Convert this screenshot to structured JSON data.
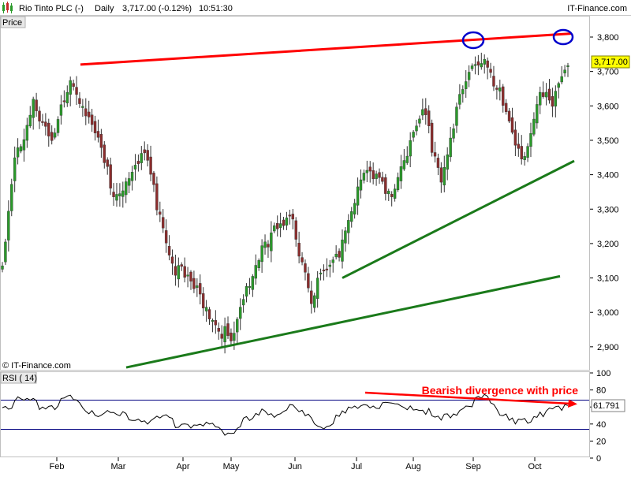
{
  "header": {
    "symbol": "Rio Tinto PLC (-)",
    "period": "Daily",
    "quote": "3,717.00 (-0.12%)",
    "time": "10:51:30",
    "brand": "IT-Finance.com"
  },
  "price_panel": {
    "label": "Price",
    "copyright": "© IT-Finance.com",
    "last_price_tag": "3,717.00",
    "y_ticks": [
      "3,800",
      "3,700",
      "3,600",
      "3,500",
      "3,400",
      "3,300",
      "3,200",
      "3,100",
      "3,000",
      "2,900"
    ]
  },
  "rsi_panel": {
    "label": "RSI ( 14)",
    "annotation": "Bearish divergence with price",
    "last_value_tag": "61.791",
    "y_ticks": [
      "100",
      "80",
      "60",
      "40",
      "20",
      "0"
    ]
  },
  "x_ticks": [
    "Feb",
    "Mar",
    "Apr",
    "May",
    "Jun",
    "Jul",
    "Aug",
    "Sep",
    "Oct"
  ],
  "colors": {
    "bull_candle": "#2a9a2a",
    "bear_candle": "#8b2d2d",
    "resistance": "#ff0000",
    "support": "#1a7a1a",
    "rsi_line": "#000000",
    "rsi_bands": "#000080",
    "marker": "#0000cc",
    "tag_fill": "#ffff00"
  },
  "chart_data": [
    {
      "type": "candlestick",
      "title": "Rio Tinto PLC (-) Daily",
      "ylabel": "Price",
      "ylim": [
        2860,
        3840
      ],
      "x_labels": [
        "Feb",
        "Mar",
        "Apr",
        "May",
        "Jun",
        "Jul",
        "Aug",
        "Sep",
        "Oct"
      ],
      "close_keypoints": [
        {
          "i": 0,
          "close": 3120
        },
        {
          "i": 4,
          "close": 3430
        },
        {
          "i": 10,
          "close": 3620
        },
        {
          "i": 16,
          "close": 3480
        },
        {
          "i": 22,
          "close": 3700
        },
        {
          "i": 28,
          "close": 3560
        },
        {
          "i": 36,
          "close": 3350
        },
        {
          "i": 46,
          "close": 3450
        },
        {
          "i": 56,
          "close": 3130
        },
        {
          "i": 66,
          "close": 3020
        },
        {
          "i": 74,
          "close": 2910
        },
        {
          "i": 84,
          "close": 3200
        },
        {
          "i": 94,
          "close": 3260
        },
        {
          "i": 100,
          "close": 3050
        },
        {
          "i": 108,
          "close": 3150
        },
        {
          "i": 116,
          "close": 3400
        },
        {
          "i": 126,
          "close": 3360
        },
        {
          "i": 136,
          "close": 3580
        },
        {
          "i": 142,
          "close": 3400
        },
        {
          "i": 148,
          "close": 3620
        },
        {
          "i": 156,
          "close": 3760
        },
        {
          "i": 162,
          "close": 3600
        },
        {
          "i": 168,
          "close": 3420
        },
        {
          "i": 174,
          "close": 3650
        },
        {
          "i": 178,
          "close": 3590
        },
        {
          "i": 183,
          "close": 3717
        }
      ],
      "trendlines": [
        {
          "name": "resistance",
          "points": [
            [
              "Jan 31",
              3720
            ],
            [
              "Oct 17",
              3810
            ]
          ]
        },
        {
          "name": "support-upper",
          "points": [
            [
              "Jun 23",
              3100
            ],
            [
              "Oct 19",
              3440
            ]
          ]
        },
        {
          "name": "support-lower",
          "points": [
            [
              "Jan 31",
              2840
            ],
            [
              "Oct 15",
              3105
            ]
          ]
        }
      ],
      "last_price": 3717.0,
      "change_pct": -0.12,
      "grid": false
    },
    {
      "type": "line",
      "title": "RSI ( 14)",
      "ylim": [
        0,
        100
      ],
      "reference_lines": [
        70,
        30
      ],
      "keypoints": [
        {
          "i": 0,
          "value": 60
        },
        {
          "i": 8,
          "value": 68
        },
        {
          "i": 14,
          "value": 60
        },
        {
          "i": 22,
          "value": 67
        },
        {
          "i": 30,
          "value": 55
        },
        {
          "i": 40,
          "value": 48
        },
        {
          "i": 52,
          "value": 45
        },
        {
          "i": 64,
          "value": 38
        },
        {
          "i": 74,
          "value": 32
        },
        {
          "i": 84,
          "value": 52
        },
        {
          "i": 94,
          "value": 58
        },
        {
          "i": 102,
          "value": 38
        },
        {
          "i": 110,
          "value": 50
        },
        {
          "i": 118,
          "value": 66
        },
        {
          "i": 126,
          "value": 60
        },
        {
          "i": 134,
          "value": 62
        },
        {
          "i": 142,
          "value": 42
        },
        {
          "i": 150,
          "value": 65
        },
        {
          "i": 156,
          "value": 68
        },
        {
          "i": 166,
          "value": 45
        },
        {
          "i": 170,
          "value": 38
        },
        {
          "i": 178,
          "value": 62
        },
        {
          "i": 183,
          "value": 61.791
        }
      ],
      "last_value": 61.791,
      "annotation": "Bearish divergence with price",
      "divergence_arrow": [
        [
          [
            "Jun 30",
            80
          ],
          [
            "Oct 19",
            65
          ]
        ]
      ]
    }
  ]
}
